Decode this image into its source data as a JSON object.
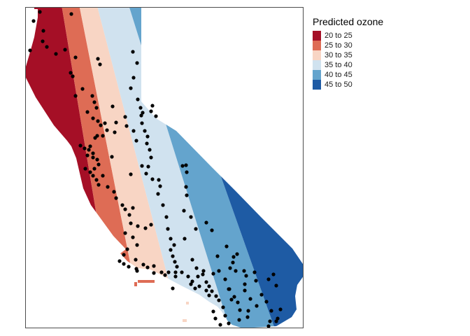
{
  "legend": {
    "title": "Predicted ozone",
    "classes": [
      {
        "label": "20 to 25",
        "color": "#a50f26"
      },
      {
        "label": "25 to 30",
        "color": "#de6c55"
      },
      {
        "label": "30 to 35",
        "color": "#f8d5c4"
      },
      {
        "label": "35 to 40",
        "color": "#d0e2ef"
      },
      {
        "label": "40 to 45",
        "color": "#64a4cd"
      },
      {
        "label": "45 to 50",
        "color": "#1e5ba4"
      }
    ]
  },
  "map": {
    "region": "California",
    "layer": "predicted-ozone-raster",
    "points_color": "#000000",
    "frame_color": "#4d4d4d"
  }
}
